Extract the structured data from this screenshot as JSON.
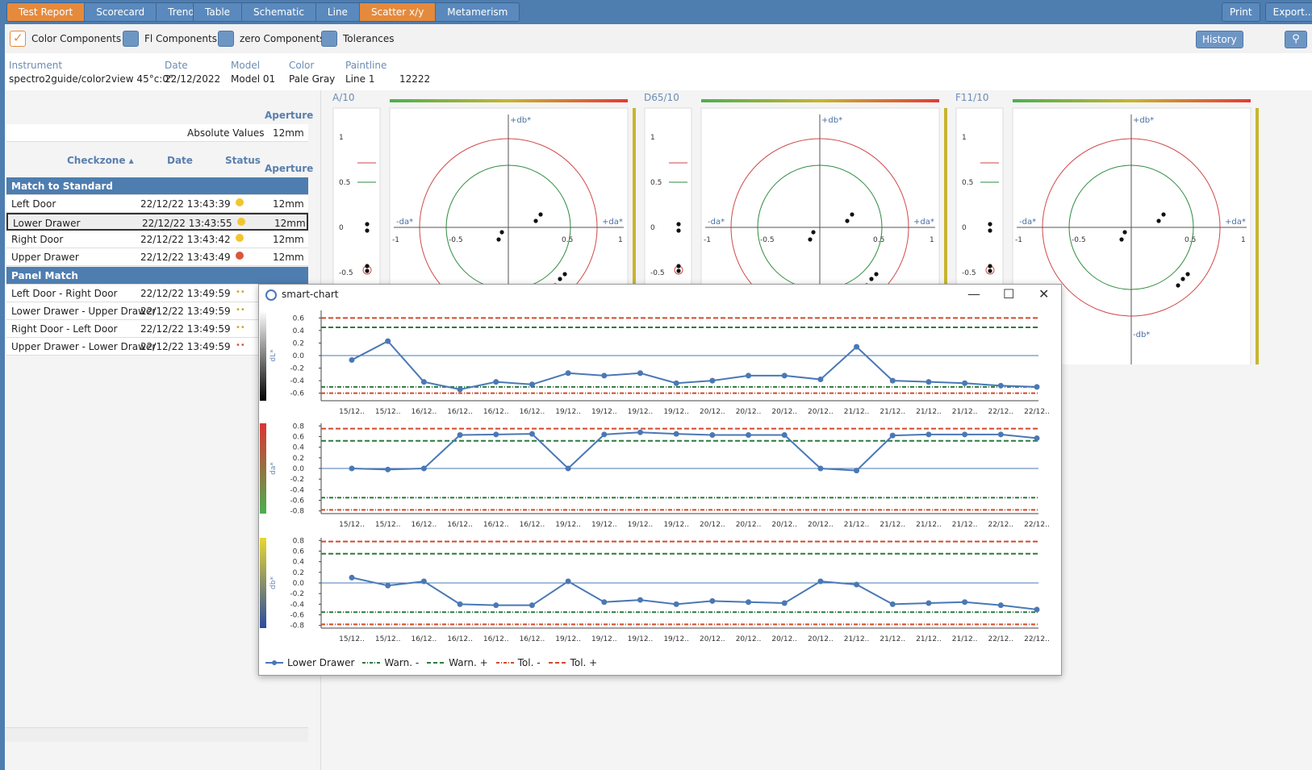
{
  "top_tabs_left": [
    "Test Report",
    "Scorecard",
    "Trend"
  ],
  "top_tabs_view": [
    "Table",
    "Schematic",
    "Line",
    "Scatter x/y",
    "Metamerism"
  ],
  "top_actions": [
    "Print",
    "Export..."
  ],
  "options": [
    {
      "label": "Color Components",
      "checked": true
    },
    {
      "label": "Fl Components",
      "checked": false
    },
    {
      "label": "zero Components",
      "checked": false
    },
    {
      "label": "Tolerances",
      "checked": false
    }
  ],
  "history_label": "History",
  "info": {
    "instrument_label": "Instrument",
    "instrument": "spectro2guide/color2view 45°c:0°",
    "date_label": "Date",
    "date": "22/12/2022",
    "model_label": "Model",
    "model": "Model 01",
    "color_label": "Color",
    "color": "Pale Gray",
    "paintline_label": "Paintline",
    "paintline": "Line 1",
    "extra": "12222"
  },
  "table": {
    "aperture_header": "Aperture",
    "absolute_values": "Absolute Values",
    "abs_aperture": "12mm",
    "col_checkzone": "Checkzone ▴",
    "col_date": "Date",
    "col_status": "Status",
    "col_aperture": "Aperture",
    "group1": "Match to Standard",
    "rows1": [
      {
        "name": "Left Door",
        "date": "22/12/22 13:43:39",
        "status": "#f2c530",
        "aperture": "12mm"
      },
      {
        "name": "Lower Drawer",
        "date": "22/12/22 13:43:55",
        "status": "#f2c530",
        "aperture": "12mm"
      },
      {
        "name": "Right Door",
        "date": "22/12/22 13:43:42",
        "status": "#f2c530",
        "aperture": "12mm"
      },
      {
        "name": "Upper Drawer",
        "date": "22/12/22 13:43:49",
        "status": "#d9573c",
        "aperture": "12mm"
      }
    ],
    "group2": "Panel Match",
    "rows2": [
      {
        "name": "Left Door - Right Door",
        "date": "22/12/22 13:49:59",
        "status": "••"
      },
      {
        "name": "Lower Drawer - Upper Drawer",
        "date": "22/12/22 13:49:59",
        "status": "••"
      },
      {
        "name": "Right Door - Left Door",
        "date": "22/12/22 13:49:59",
        "status": "••"
      },
      {
        "name": "Upper Drawer - Lower Drawer",
        "date": "22/12/22 13:49:59",
        "status": "••"
      }
    ]
  },
  "illuminants": [
    "A/10",
    "D65/10",
    "F11/10"
  ],
  "scatter_labels": {
    "db_pos": "+db*",
    "db_neg": "-db*",
    "da_pos": "+da*",
    "da_neg": "-da*"
  },
  "smart_chart": {
    "title": "smart-chart",
    "legend": [
      "Lower Drawer",
      "Warn. -",
      "Warn. +",
      "Tol. -",
      "Tol. +"
    ]
  },
  "chart_data": {
    "type": "line",
    "x": [
      "15/12..",
      "15/12..",
      "16/12..",
      "16/12..",
      "16/12..",
      "16/12..",
      "19/12..",
      "19/12..",
      "19/12..",
      "19/12..",
      "20/12..",
      "20/12..",
      "20/12..",
      "20/12..",
      "21/12..",
      "21/12..",
      "21/12..",
      "21/12..",
      "22/12..",
      "22/12.."
    ],
    "panels": [
      {
        "ylabel": "dL*",
        "yticks": [
          0.6,
          0.4,
          0.2,
          0.0,
          -0.2,
          -0.4,
          -0.6
        ],
        "ylim": [
          -0.72,
          0.72
        ],
        "tol_plus": 0.6,
        "warn_plus": 0.45,
        "warn_minus": -0.5,
        "tol_minus": -0.6,
        "series": [
          {
            "name": "Lower Drawer",
            "values": [
              -0.07,
              0.23,
              -0.42,
              -0.54,
              -0.42,
              -0.46,
              -0.28,
              -0.32,
              -0.28,
              -0.44,
              -0.4,
              -0.32,
              -0.32,
              -0.38,
              0.14,
              -0.4,
              -0.42,
              -0.44,
              -0.48,
              -0.5
            ]
          }
        ]
      },
      {
        "ylabel": "da*",
        "yticks": [
          0.8,
          0.6,
          0.4,
          0.2,
          0.0,
          -0.2,
          -0.4,
          -0.6,
          -0.8
        ],
        "ylim": [
          -0.85,
          0.85
        ],
        "tol_plus": 0.75,
        "warn_plus": 0.52,
        "warn_minus": -0.55,
        "tol_minus": -0.78,
        "series": [
          {
            "name": "Lower Drawer",
            "values": [
              0.0,
              -0.02,
              0.0,
              0.63,
              0.64,
              0.65,
              0.0,
              0.64,
              0.68,
              0.65,
              0.63,
              0.63,
              0.63,
              0.0,
              -0.04,
              0.62,
              0.64,
              0.64,
              0.64,
              0.57
            ]
          }
        ]
      },
      {
        "ylabel": "db*",
        "yticks": [
          0.8,
          0.6,
          0.4,
          0.2,
          0.0,
          -0.2,
          -0.4,
          -0.6,
          -0.8
        ],
        "ylim": [
          -0.85,
          0.85
        ],
        "tol_plus": 0.78,
        "warn_plus": 0.55,
        "warn_minus": -0.55,
        "tol_minus": -0.78,
        "series": [
          {
            "name": "Lower Drawer",
            "values": [
              0.1,
              -0.05,
              0.03,
              -0.4,
              -0.42,
              -0.42,
              0.03,
              -0.36,
              -0.32,
              -0.4,
              -0.34,
              -0.36,
              -0.38,
              0.03,
              -0.03,
              -0.4,
              -0.38,
              -0.36,
              -0.42,
              -0.5
            ]
          }
        ]
      }
    ]
  },
  "colors": {
    "accent": "#e58a3c",
    "brand": "#4e7db0",
    "series": "#4a78b5",
    "warn": "#2c7a3f",
    "tol": "#d14a2a"
  }
}
